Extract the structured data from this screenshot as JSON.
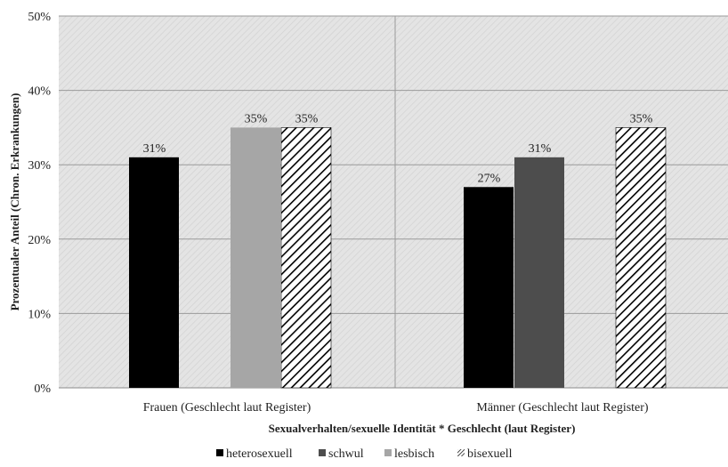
{
  "chart_data": {
    "type": "bar",
    "title": "",
    "xlabel": "Sexualverhalten/sexuelle Identität * Geschlecht (laut Register)",
    "ylabel": "Prozentualer Anteil (Chron. Erkrankungen)",
    "ylim": [
      0,
      50
    ],
    "yticks": [
      "0%",
      "10%",
      "20%",
      "30%",
      "40%",
      "50%"
    ],
    "grid": true,
    "legend_position": "bottom",
    "categories": [
      "Frauen (Geschlecht laut Register)",
      "Männer (Geschlecht laut Register)"
    ],
    "series": [
      {
        "name": "heterosexuell",
        "values": [
          31,
          27
        ],
        "labels": [
          "31%",
          "27%"
        ],
        "color": "#000000",
        "pattern": "solid"
      },
      {
        "name": "schwul",
        "values": [
          null,
          31
        ],
        "labels": [
          "",
          "31%"
        ],
        "color": "#4d4d4d",
        "pattern": "solid"
      },
      {
        "name": "lesbisch",
        "values": [
          35,
          null
        ],
        "labels": [
          "35%",
          ""
        ],
        "color": "#a6a6a6",
        "pattern": "solid"
      },
      {
        "name": "bisexuell",
        "values": [
          35,
          35
        ],
        "labels": [
          "35%",
          "35%"
        ],
        "color": "#000000",
        "pattern": "diagonal-hatch"
      }
    ]
  }
}
